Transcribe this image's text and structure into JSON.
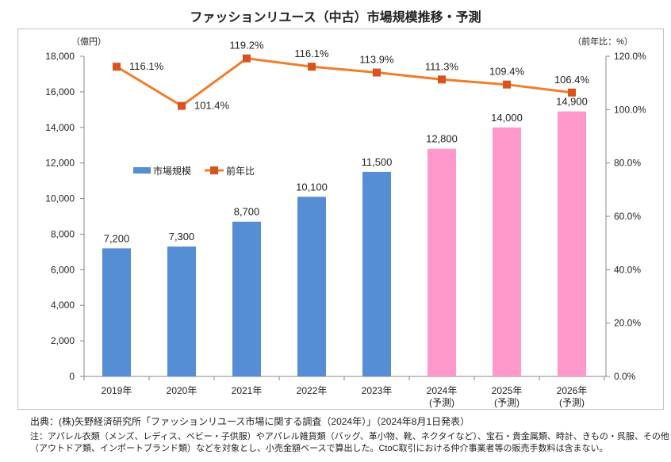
{
  "chart_data": {
    "type": "bar+line",
    "title": "ファッションリユース（中古）市場規模推移・予測",
    "categories": [
      [
        "2019年"
      ],
      [
        "2020年"
      ],
      [
        "2021年"
      ],
      [
        "2022年"
      ],
      [
        "2023年"
      ],
      [
        "2024年",
        "(予測)"
      ],
      [
        "2025年",
        "(予測)"
      ],
      [
        "2026年",
        "(予測)"
      ]
    ],
    "series": [
      {
        "name": "市場規模",
        "type": "bar",
        "axis": "left",
        "values": [
          7200,
          7300,
          8700,
          10100,
          11500,
          12800,
          14000,
          14900
        ],
        "labels": [
          "7,200",
          "7,300",
          "8,700",
          "10,100",
          "11,500",
          "12,800",
          "14,000",
          "14,900"
        ],
        "forecast": [
          false,
          false,
          false,
          false,
          false,
          true,
          true,
          true
        ]
      },
      {
        "name": "前年比",
        "type": "line",
        "axis": "right",
        "values": [
          116.1,
          101.4,
          119.2,
          116.1,
          113.9,
          111.3,
          109.4,
          106.4
        ],
        "labels": [
          "116.1%",
          "101.4%",
          "119.2%",
          "116.1%",
          "113.9%",
          "111.3%",
          "109.4%",
          "106.4%"
        ]
      }
    ],
    "ylabel_left": "（億円）",
    "ylabel_right": "（前年比：%）",
    "ylim_left": [
      0,
      18000
    ],
    "ylim_right": [
      0,
      120
    ],
    "yticks_left": [
      "0",
      "2,000",
      "4,000",
      "6,000",
      "8,000",
      "10,000",
      "12,000",
      "14,000",
      "16,000",
      "18,000"
    ],
    "yticks_right": [
      "0.0%",
      "20.0%",
      "40.0%",
      "60.0%",
      "80.0%",
      "100.0%",
      "120.0%"
    ],
    "legend_position": "upper-left",
    "colors": {
      "bar": "#558ed5",
      "bar_forecast": "#ff99cc",
      "line": "#f07d2a",
      "marker": "#d9531e"
    }
  },
  "source": "出典：(株)矢野経済研究所「ファッションリユース市場に関する調査（2024年）」（2024年8月1日発表）",
  "notes": [
    "注：アパレル衣類（メンズ、レディス、ベビー・子供服）やアパレル雑貨類（バッグ、革小物、靴、ネクタイなど）、宝石・貴金属類、時計、きもの・呉服、その他",
    "（アウトドア類、インポートブランド類）などを対象とし、小売金額ベースで算出した。CtoC取引における仲介事業者等の販売手数料は含まない。"
  ]
}
